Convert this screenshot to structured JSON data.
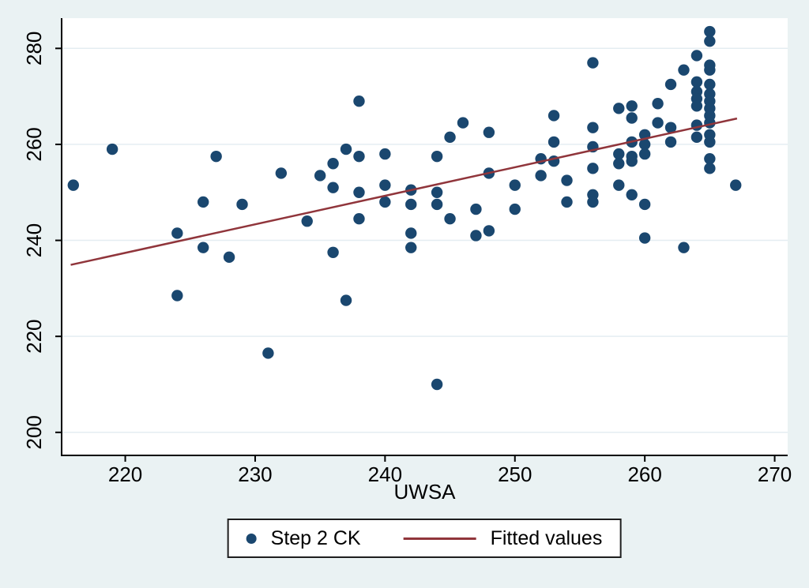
{
  "figure": {
    "background_color": "#eaf2f3",
    "plot_background_color": "#ffffff",
    "grid_color": "#e4edf2",
    "axis_color": "#000000",
    "navy": "#1a476f",
    "maroon": "#90353b"
  },
  "chart_data": {
    "type": "scatter",
    "title": "",
    "xlabel": "UWSA",
    "ylabel": "",
    "x_ticks": [
      220,
      230,
      240,
      250,
      260,
      270
    ],
    "y_ticks": [
      200,
      220,
      240,
      260,
      280
    ],
    "xlim": [
      215.1,
      271.0
    ],
    "ylim": [
      195.2,
      286.3
    ],
    "grid": "horizontal-only",
    "legend_position": "bottom-center",
    "series": [
      {
        "name": "Step 2 CK",
        "type": "scatter",
        "marker": "circle",
        "color": "#1a476f",
        "points": [
          [
            216,
            251.5
          ],
          [
            219,
            259
          ],
          [
            224,
            241.5
          ],
          [
            224,
            228.5
          ],
          [
            226,
            248
          ],
          [
            226,
            238.5
          ],
          [
            227,
            257.5
          ],
          [
            228,
            236.5
          ],
          [
            229,
            247.5
          ],
          [
            231,
            216.5
          ],
          [
            232,
            254
          ],
          [
            234,
            244
          ],
          [
            235,
            253.5
          ],
          [
            236,
            256
          ],
          [
            236,
            251
          ],
          [
            236,
            237.5
          ],
          [
            237,
            259
          ],
          [
            237,
            227.5
          ],
          [
            238,
            269
          ],
          [
            238,
            257.5
          ],
          [
            238,
            250
          ],
          [
            238,
            244.5
          ],
          [
            240,
            258
          ],
          [
            240,
            251.5
          ],
          [
            240,
            248
          ],
          [
            242,
            250.5
          ],
          [
            242,
            247.5
          ],
          [
            242,
            241.5
          ],
          [
            242,
            238.5
          ],
          [
            244,
            257.5
          ],
          [
            244,
            250
          ],
          [
            244,
            247.5
          ],
          [
            244,
            210
          ],
          [
            245,
            261.5
          ],
          [
            245,
            244.5
          ],
          [
            246,
            264.5
          ],
          [
            247,
            246.5
          ],
          [
            247,
            241
          ],
          [
            248,
            262.5
          ],
          [
            248,
            254
          ],
          [
            248,
            242
          ],
          [
            250,
            251.5
          ],
          [
            250,
            246.5
          ],
          [
            252,
            257
          ],
          [
            252,
            253.5
          ],
          [
            253,
            266
          ],
          [
            253,
            260.5
          ],
          [
            253,
            256.5
          ],
          [
            254,
            252.5
          ],
          [
            254,
            248
          ],
          [
            256,
            277
          ],
          [
            256,
            263.5
          ],
          [
            256,
            259.5
          ],
          [
            256,
            255
          ],
          [
            256,
            249.5
          ],
          [
            256,
            248
          ],
          [
            258,
            267.5
          ],
          [
            258,
            258
          ],
          [
            258,
            256
          ],
          [
            258,
            251.5
          ],
          [
            259,
            268
          ],
          [
            259,
            265.5
          ],
          [
            259,
            260.5
          ],
          [
            259,
            257.5
          ],
          [
            259,
            256.5
          ],
          [
            259,
            249.5
          ],
          [
            260,
            262
          ],
          [
            260,
            260
          ],
          [
            260,
            258
          ],
          [
            260,
            247.5
          ],
          [
            260,
            240.5
          ],
          [
            261,
            268.5
          ],
          [
            261,
            264.5
          ],
          [
            262,
            272.5
          ],
          [
            262,
            263.5
          ],
          [
            262,
            260.5
          ],
          [
            263,
            275.5
          ],
          [
            263,
            238.5
          ],
          [
            264,
            278.5
          ],
          [
            264,
            273
          ],
          [
            264,
            271
          ],
          [
            264,
            269.5
          ],
          [
            264,
            268
          ],
          [
            264,
            264
          ],
          [
            264,
            261.5
          ],
          [
            265,
            283.5
          ],
          [
            265,
            281.5
          ],
          [
            265,
            276.5
          ],
          [
            265,
            275.5
          ],
          [
            265,
            272.5
          ],
          [
            265,
            270.5
          ],
          [
            265,
            269
          ],
          [
            265,
            267.5
          ],
          [
            265,
            266
          ],
          [
            265,
            264.5
          ],
          [
            265,
            262
          ],
          [
            265,
            260.5
          ],
          [
            265,
            257
          ],
          [
            265,
            255
          ],
          [
            267,
            251.5
          ]
        ]
      },
      {
        "name": "Fitted values",
        "type": "line",
        "color": "#90353b",
        "points": [
          [
            215.8,
            234.9
          ],
          [
            267.1,
            265.4
          ]
        ]
      }
    ]
  },
  "legend": {
    "entries": [
      {
        "label": "Step 2 CK",
        "swatch": "dot",
        "color": "#1a476f"
      },
      {
        "label": "Fitted values",
        "swatch": "line",
        "color": "#90353b"
      }
    ]
  }
}
